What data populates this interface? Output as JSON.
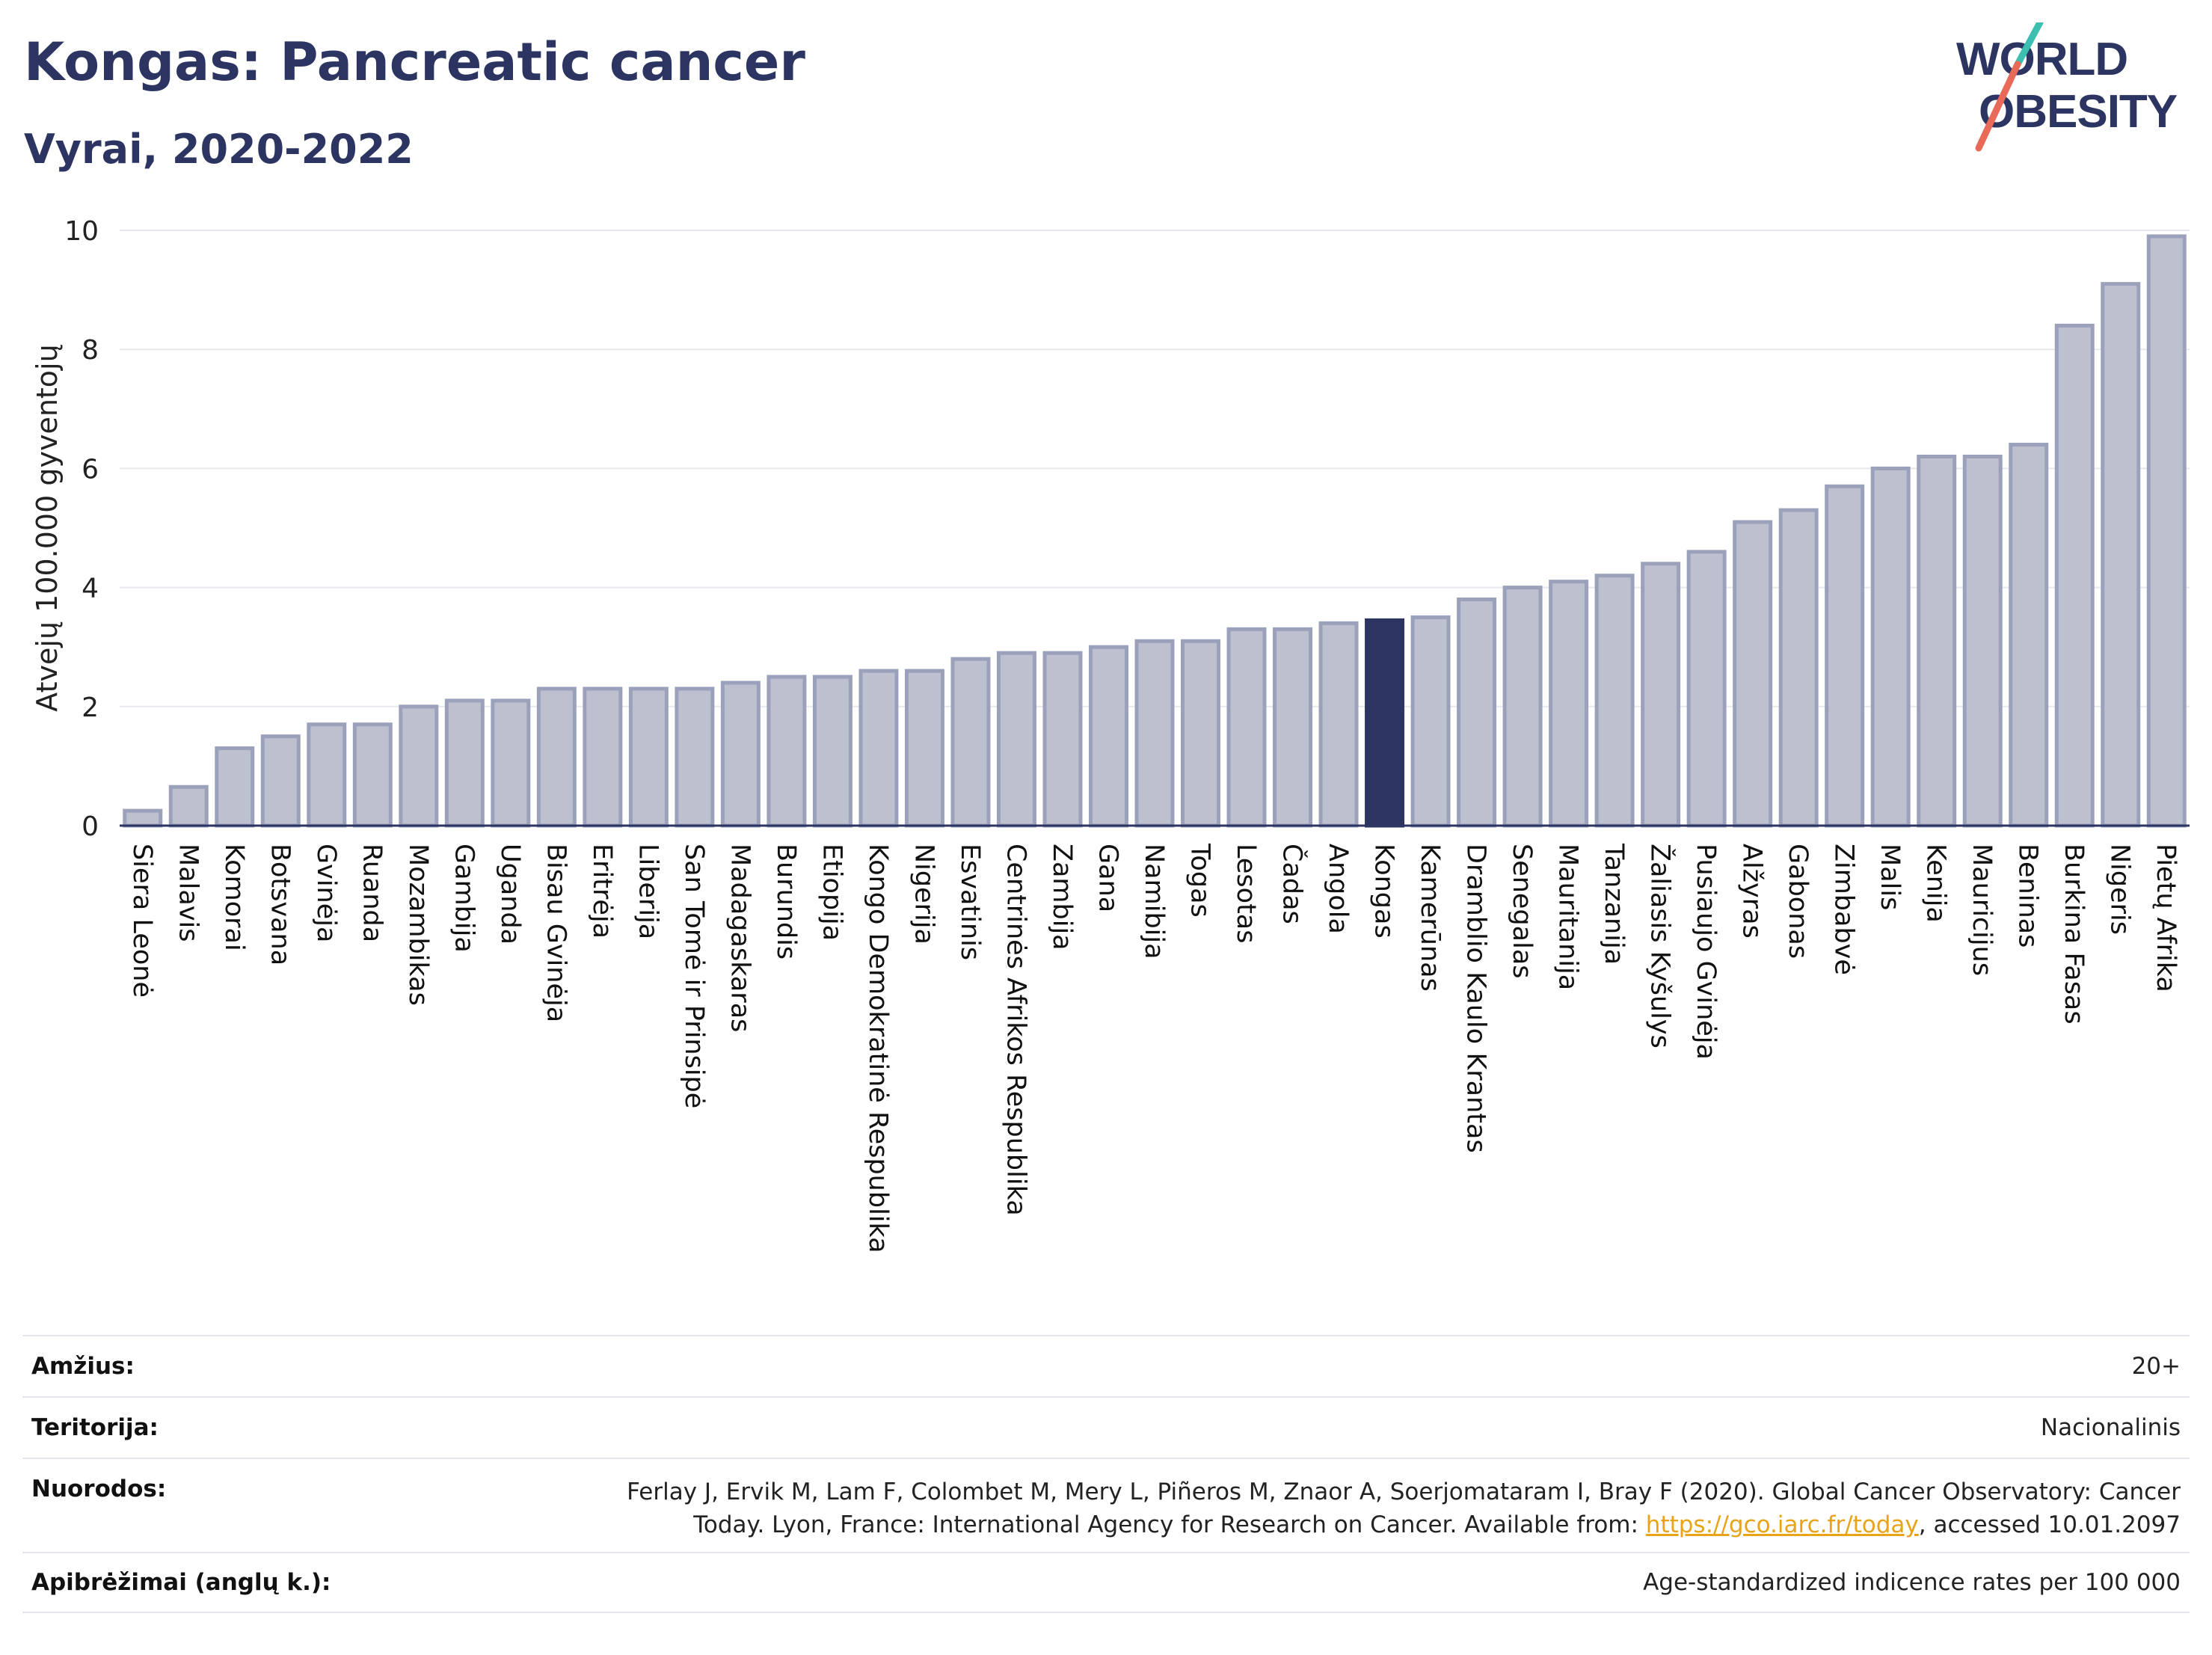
{
  "header": {
    "title": "Kongas: Pancreatic cancer",
    "subtitle": "Vyrai, 2020-2022"
  },
  "logo": {
    "line1": "WORLD",
    "line2": "OBESITY"
  },
  "chart_data": {
    "type": "bar",
    "title": "Kongas: Pancreatic cancer",
    "subtitle": "Vyrai, 2020-2022",
    "ylabel": "Atvejų 100.000 gyventojų",
    "xlabel": "",
    "ylim": [
      0,
      10
    ],
    "yticks": [
      0,
      2,
      4,
      6,
      8,
      10
    ],
    "grid": true,
    "highlight": "Kongas",
    "colors": {
      "bar": "#bcc0cf",
      "bar_edge": "#9ba1ba",
      "highlight": "#2c3562"
    },
    "categories": [
      "Siera Leonė",
      "Malavis",
      "Komorai",
      "Botsvana",
      "Gvinėja",
      "Ruanda",
      "Mozambikas",
      "Gambija",
      "Uganda",
      "Bisau Gvinėja",
      "Eritrėja",
      "Liberija",
      "San Tomė ir Prinsipė",
      "Madagaskaras",
      "Burundis",
      "Etiopija",
      "Kongo Demokratinė Respublika",
      "Nigerija",
      "Esvatinis",
      "Centrinės Afrikos Respublika",
      "Zambija",
      "Gana",
      "Namibija",
      "Togas",
      "Lesotas",
      "Čadas",
      "Angola",
      "Kongas",
      "Kamerūnas",
      "Dramblio Kaulo Krantas",
      "Senegalas",
      "Mauritanija",
      "Tanzanija",
      "Žaliasis Kyšulys",
      "Pusiaujo Gvinėja",
      "Alžyras",
      "Gabonas",
      "Zimbabvė",
      "Malis",
      "Kenija",
      "Mauricijus",
      "Beninas",
      "Burkina Fasas",
      "Nigeris",
      "Pietų Afrika"
    ],
    "values": [
      0.25,
      0.65,
      1.3,
      1.5,
      1.7,
      1.7,
      2.0,
      2.1,
      2.1,
      2.3,
      2.3,
      2.3,
      2.3,
      2.4,
      2.5,
      2.5,
      2.6,
      2.6,
      2.8,
      2.9,
      2.9,
      3.0,
      3.1,
      3.1,
      3.3,
      3.3,
      3.4,
      3.45,
      3.5,
      3.8,
      4.0,
      4.1,
      4.2,
      4.4,
      4.6,
      5.1,
      5.3,
      5.7,
      6.0,
      6.2,
      6.2,
      6.4,
      8.4,
      9.1,
      9.9
    ]
  },
  "footer": {
    "rows": [
      {
        "label": "Amžius:",
        "value": "20+"
      },
      {
        "label": "Teritorija:",
        "value": "Nacionalinis"
      },
      {
        "label": "Nuorodos:",
        "value_line1": "Ferlay J, Ervik M, Lam F, Colombet M, Mery L, Piñeros M, Znaor A, Soerjomataram I, Bray F (2020). Global Cancer Observatory: Cancer",
        "value_line2_pre": "Today. Lyon, France: International Agency for Research on Cancer. Available from: ",
        "link": "https://gco.iarc.fr/today",
        "value_line2_post": ", accessed 10.01.2097"
      },
      {
        "label": "Apibrėžimai (anglų k.):",
        "value": "Age-standardized indicence rates per 100 000"
      }
    ]
  }
}
